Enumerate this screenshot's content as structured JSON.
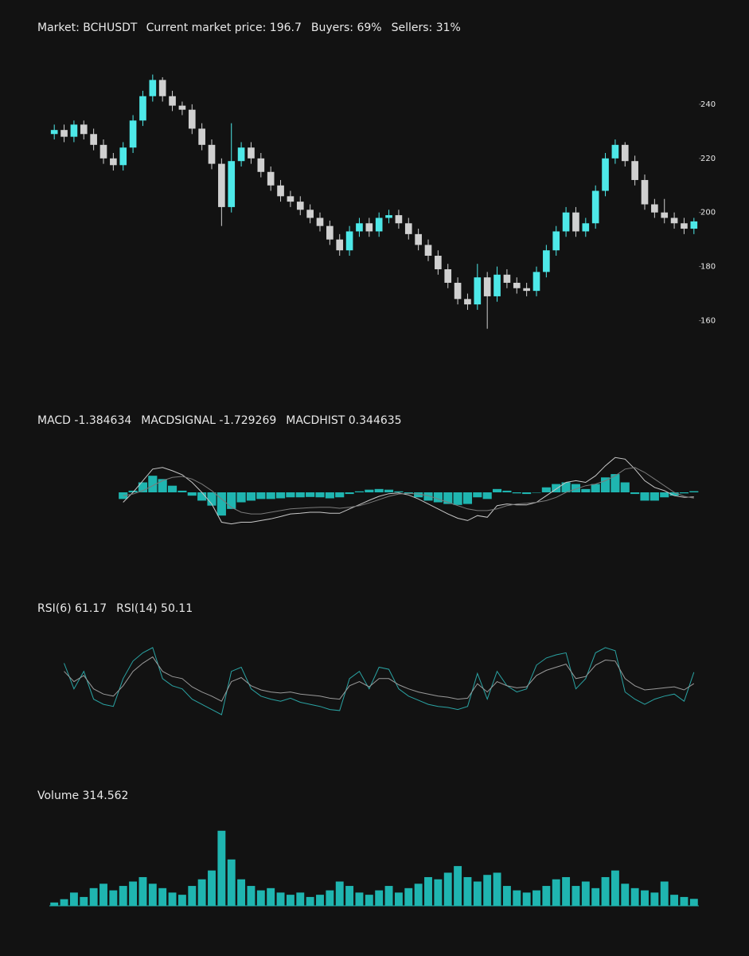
{
  "chart_data": [
    {
      "type": "candlestick",
      "title_parts": [
        "Market: BCHUSDT",
        "Current market price: 196.7",
        "Buyers: 69%",
        "Sellers: 31%"
      ],
      "up_color": "#4de8e8",
      "down_color": "#d0d0d0",
      "grid": false,
      "ylim": [
        146,
        255
      ],
      "yticks": [
        160,
        180,
        200,
        220,
        240
      ],
      "open": [
        229,
        230.5,
        228,
        232.5,
        229,
        225,
        220,
        217.5,
        224,
        234,
        243,
        249,
        243,
        239.5,
        238,
        231,
        225,
        218,
        202,
        219,
        224,
        220,
        215,
        210,
        206,
        204,
        201,
        198,
        195,
        190,
        186,
        193,
        196,
        193,
        198,
        199,
        196,
        192,
        188,
        184,
        179,
        174,
        168,
        166,
        176,
        169,
        177,
        174,
        172,
        171,
        178,
        186,
        193,
        200,
        193,
        196,
        208,
        220,
        225,
        219,
        212,
        203,
        200,
        198,
        196,
        194
      ],
      "high": [
        232.5,
        232.5,
        234,
        234,
        231,
        227,
        222,
        226,
        236,
        245,
        251,
        250,
        245,
        241,
        240,
        233,
        227,
        220,
        233,
        226,
        226,
        222,
        217,
        212,
        208,
        206,
        203,
        200,
        197,
        192,
        195,
        198,
        198,
        200,
        201,
        201,
        198,
        194,
        190,
        186,
        181,
        176,
        170,
        181,
        178,
        180,
        179,
        176,
        174,
        180,
        188,
        195,
        202,
        202,
        198,
        210,
        222,
        227,
        226,
        221,
        214,
        205,
        205,
        200,
        198,
        198
      ],
      "low": [
        227,
        226,
        226,
        227,
        223,
        218,
        215.5,
        215.5,
        222,
        232,
        241,
        241,
        237.5,
        236,
        229,
        223,
        216,
        195,
        200,
        217,
        218,
        213,
        208,
        204,
        202,
        199,
        196,
        193,
        188,
        184,
        184,
        191,
        191,
        191,
        196,
        194,
        190,
        186,
        182,
        177,
        172,
        166,
        164,
        164,
        157,
        167,
        172,
        170,
        169,
        169,
        176,
        184,
        191,
        191,
        191,
        194,
        206,
        218,
        217,
        210,
        201,
        198,
        196,
        194,
        192,
        192
      ],
      "close": [
        230.5,
        228,
        232.5,
        229,
        225,
        220,
        217.5,
        224,
        234,
        243,
        249,
        243,
        239.5,
        238,
        231,
        225,
        218,
        202,
        219,
        224,
        220,
        215,
        210,
        206,
        204,
        201,
        198,
        195,
        190,
        186,
        193,
        196,
        193,
        198,
        199,
        196,
        192,
        188,
        184,
        179,
        174,
        168,
        166,
        176,
        169,
        177,
        174,
        172,
        171,
        178,
        186,
        193,
        200,
        193,
        196,
        208,
        220,
        225,
        219,
        212,
        203,
        200,
        198,
        196,
        194,
        196.7
      ]
    },
    {
      "type": "combo",
      "title_parts": [
        "MACD -1.384634",
        "MACDSIGNAL -1.729269",
        "MACDHIST 0.344635"
      ],
      "ylim": [
        -12,
        12
      ],
      "series": [
        {
          "kind": "bar",
          "color": "#1fb5b0",
          "values": [
            null,
            null,
            null,
            null,
            null,
            null,
            null,
            -2,
            0.5,
            3,
            5,
            4,
            2,
            0.5,
            -1,
            -2.5,
            -4,
            -7,
            -5,
            -3,
            -2.5,
            -2,
            -2,
            -1.8,
            -1.5,
            -1.5,
            -1.4,
            -1.5,
            -1.8,
            -1.5,
            -0.5,
            0.3,
            0.8,
            1,
            0.8,
            0.3,
            -0.5,
            -1.5,
            -2.5,
            -3,
            -3.5,
            -3.8,
            -3.5,
            -1.5,
            -2,
            1,
            0.5,
            -0.3,
            -0.5,
            0,
            1.5,
            2.5,
            3,
            2.5,
            1,
            2.5,
            4.5,
            5.5,
            3,
            -0.5,
            -2.5,
            -2.5,
            -1.5,
            -1,
            -0.3,
            0.344635
          ]
        },
        {
          "kind": "line",
          "color": "#c8c8c8",
          "values": [
            null,
            null,
            null,
            null,
            null,
            null,
            null,
            -3,
            0,
            3.5,
            7,
            7.5,
            6.5,
            5.3,
            3,
            0,
            -3.5,
            -9,
            -9.5,
            -9,
            -9,
            -8.5,
            -8,
            -7.3,
            -6.5,
            -6.3,
            -6,
            -6,
            -6.3,
            -6.3,
            -5,
            -3.7,
            -2.4,
            -1.2,
            -0.4,
            -0.2,
            -0.8,
            -2,
            -3.5,
            -5,
            -6.5,
            -7.8,
            -8.5,
            -7,
            -7.5,
            -4,
            -3.5,
            -3.8,
            -3.8,
            -3,
            -1,
            1,
            3,
            3.5,
            3,
            5,
            8,
            10.5,
            10,
            7,
            3.5,
            1.5,
            0.5,
            -1,
            -1.5,
            -1.384634
          ]
        },
        {
          "kind": "line",
          "color": "#7a7a7a",
          "values": [
            null,
            null,
            null,
            null,
            null,
            null,
            null,
            -1,
            -0.5,
            0.5,
            2,
            3.5,
            4.5,
            4.8,
            4,
            2.5,
            0.5,
            -2,
            -4.5,
            -6,
            -6.5,
            -6.5,
            -6,
            -5.5,
            -5,
            -4.8,
            -4.6,
            -4.5,
            -4.5,
            -4.8,
            -4.5,
            -4,
            -3.2,
            -2.2,
            -1.2,
            -0.5,
            -0.3,
            -0.5,
            -1,
            -2,
            -3,
            -4,
            -5,
            -5.5,
            -5.5,
            -5,
            -4,
            -3.5,
            -3.3,
            -3,
            -2.5,
            -1.5,
            0,
            1,
            2,
            2.5,
            3.5,
            5,
            7,
            7.5,
            6,
            4,
            2,
            0,
            -1.2,
            -1.729269
          ]
        }
      ]
    },
    {
      "type": "line",
      "title_parts": [
        "RSI(6) 61.17",
        "RSI(14) 50.11"
      ],
      "ylim": [
        10,
        95
      ],
      "series": [
        {
          "color": "#2aa3a3",
          "values": [
            null,
            70,
            45,
            62,
            35,
            30,
            28,
            55,
            72,
            80,
            85,
            55,
            48,
            45,
            35,
            30,
            25,
            20,
            62,
            66,
            45,
            38,
            35,
            33,
            36,
            32,
            30,
            28,
            25,
            24,
            55,
            62,
            45,
            66,
            64,
            45,
            38,
            34,
            30,
            28,
            27,
            25,
            28,
            60,
            35,
            62,
            48,
            42,
            45,
            68,
            75,
            78,
            80,
            45,
            55,
            80,
            85,
            82,
            42,
            35,
            30,
            35,
            38,
            40,
            33,
            61.17
          ]
        },
        {
          "color": "#9a9a9a",
          "values": [
            null,
            62,
            52,
            58,
            45,
            40,
            38,
            48,
            62,
            70,
            76,
            62,
            57,
            55,
            47,
            42,
            38,
            33,
            52,
            56,
            48,
            44,
            42,
            41,
            42,
            40,
            39,
            38,
            36,
            35,
            48,
            52,
            47,
            55,
            55,
            49,
            45,
            42,
            40,
            38,
            37,
            35,
            36,
            50,
            42,
            52,
            48,
            46,
            47,
            58,
            63,
            66,
            69,
            55,
            57,
            68,
            73,
            72,
            55,
            48,
            44,
            45,
            46,
            47,
            44,
            50.11
          ]
        }
      ]
    },
    {
      "type": "bar",
      "title_parts": [
        "Volume 314.562"
      ],
      "color": "#1fb5b0",
      "ylim": [
        0,
        3500
      ],
      "values": [
        150,
        300,
        600,
        400,
        800,
        1000,
        700,
        900,
        1100,
        1300,
        1000,
        800,
        600,
        500,
        900,
        1200,
        1600,
        3400,
        2100,
        1200,
        900,
        700,
        800,
        600,
        500,
        600,
        400,
        500,
        700,
        1100,
        900,
        600,
        500,
        700,
        900,
        600,
        800,
        1000,
        1300,
        1200,
        1500,
        1800,
        1300,
        1100,
        1400,
        1500,
        900,
        700,
        600,
        700,
        900,
        1200,
        1300,
        900,
        1100,
        800,
        1300,
        1600,
        1000,
        800,
        700,
        600,
        1100,
        500,
        400,
        314.562
      ]
    }
  ]
}
